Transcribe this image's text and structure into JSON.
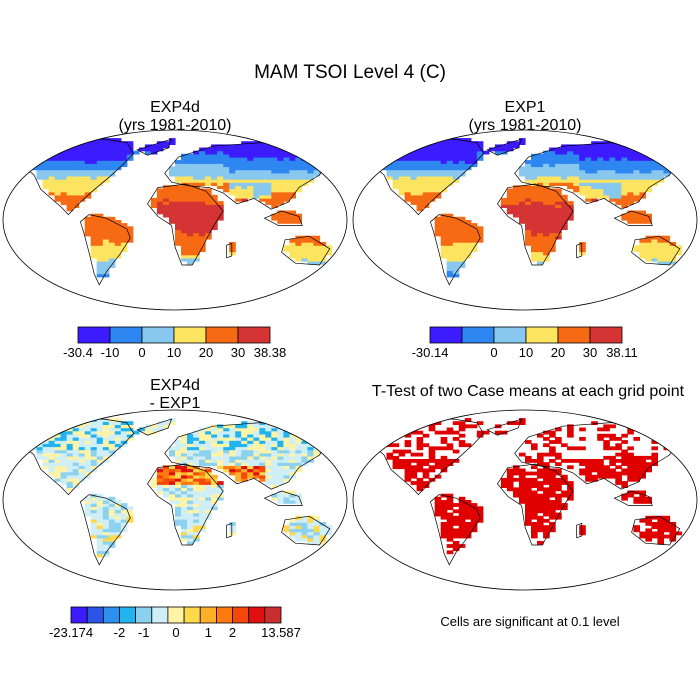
{
  "title": "MAM TSOI Level 4 (C)",
  "panels": [
    {
      "title_line1": "EXP4d",
      "title_line2": "(yrs 1981-2010)"
    },
    {
      "title_line1": "EXP1",
      "title_line2": "(yrs 1981-2010)"
    },
    {
      "title_line1": "EXP4d",
      "title_line2": "- EXP1"
    },
    {
      "title_line1": "T-Test of two Case means at each grid point",
      "title_line2": ""
    }
  ],
  "colorbars": [
    {
      "colors": [
        "#3c1cff",
        "#2e86f0",
        "#88c8ee",
        "#fde460",
        "#f76a14",
        "#d43434"
      ],
      "labels": [
        "-30.4",
        "-10",
        "0",
        "10",
        "20",
        "30",
        "38.38"
      ]
    },
    {
      "colors": [
        "#3c1cff",
        "#2e86f0",
        "#88c8ee",
        "#fde460",
        "#f76a14",
        "#d43434"
      ],
      "labels": [
        "-30.14",
        "",
        "0",
        "10",
        "20",
        "30",
        "38.11"
      ]
    },
    {
      "colors": [
        "#3c1cff",
        "#2c55e8",
        "#2d8ff0",
        "#22b4ee",
        "#8cd2ee",
        "#cfeef6",
        "#fff4a6",
        "#ffd84c",
        "#ffb028",
        "#ff7a0e",
        "#f44808",
        "#e01010",
        "#c83030"
      ],
      "labels": [
        "-23.174",
        "-2",
        "-1",
        "0",
        "1",
        "2",
        "13.587"
      ]
    }
  ],
  "significance_note": "Cells are significant at 0.1 level",
  "colors": {
    "significant": "#e00000",
    "land_outline": "#000000"
  }
}
